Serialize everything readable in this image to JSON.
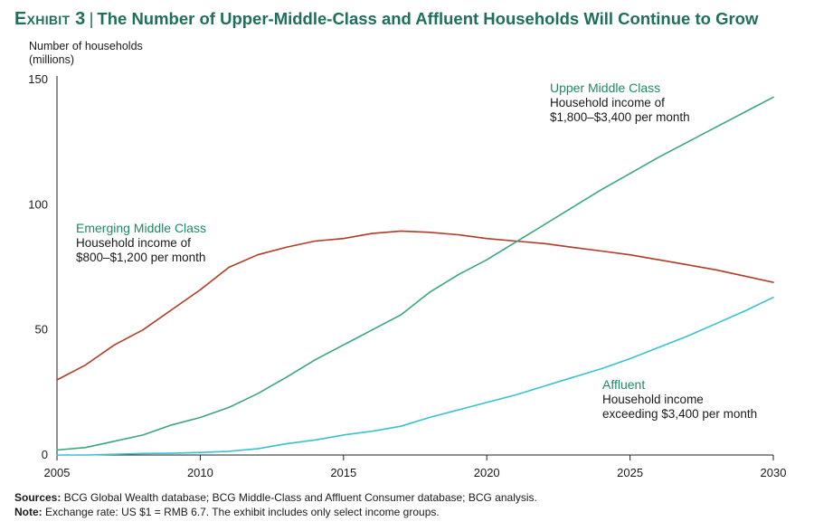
{
  "header": {
    "exhibit": "Exhibit 3",
    "separator": "|",
    "title": "The Number of Upper-Middle-Class and Affluent Households Will Continue to Grow"
  },
  "axis": {
    "ylabel_line1": "Number of households",
    "ylabel_line2": "(millions)"
  },
  "footer": {
    "sources_label": "Sources:",
    "sources_text": "BCG Global Wealth database; BCG Middle-Class and Affluent Consumer database; BCG analysis.",
    "note_label": "Note:",
    "note_text": "Exchange rate: US $1 = RMB 6.7. The exhibit includes only select income groups."
  },
  "colors": {
    "title": "#1e6f5c",
    "emerging": "#b23a26",
    "upper": "#3aa57f",
    "affluent": "#39c1cf",
    "label_green": "#1e8a66"
  },
  "chart_data": {
    "type": "line",
    "x": [
      2005,
      2006,
      2007,
      2008,
      2009,
      2010,
      2011,
      2012,
      2013,
      2014,
      2015,
      2016,
      2017,
      2018,
      2019,
      2020,
      2021,
      2022,
      2023,
      2024,
      2025,
      2026,
      2027,
      2028,
      2029,
      2030
    ],
    "xticks": [
      2005,
      2010,
      2015,
      2020,
      2025,
      2030
    ],
    "yticks": [
      0,
      50,
      100,
      150
    ],
    "xlim": [
      2005,
      2030
    ],
    "ylim": [
      0,
      150
    ],
    "grid": false,
    "series": [
      {
        "key": "emerging",
        "name": "Emerging Middle Class",
        "description": "Household income of",
        "description2": "$800–$1,200 per month",
        "values": [
          30,
          36,
          44,
          50,
          58,
          66,
          75,
          80,
          83,
          85.5,
          86.5,
          88.5,
          89.5,
          89,
          88,
          86.5,
          85.5,
          84.5,
          83,
          81.5,
          80,
          78,
          76,
          74,
          71.5,
          69
        ]
      },
      {
        "key": "upper",
        "name": "Upper Middle Class",
        "description": "Household income of",
        "description2": "$1,800–$3,400 per month",
        "values": [
          2,
          3,
          5.5,
          8,
          12,
          15,
          19,
          24.5,
          31,
          38,
          44,
          50,
          56,
          65,
          72,
          78,
          85,
          92,
          99,
          106,
          112.5,
          119,
          125,
          131,
          137,
          143
        ]
      },
      {
        "key": "affluent",
        "name": "Affluent",
        "description": "Household income",
        "description2": "exceeding $3,400 per month",
        "values": [
          0,
          0,
          0.3,
          0.6,
          0.7,
          1,
          1.5,
          2.5,
          4.5,
          6,
          8,
          9.5,
          11.5,
          15,
          18,
          21,
          24,
          27.5,
          31,
          34.5,
          38.5,
          43,
          47.5,
          52.5,
          57.5,
          63
        ]
      }
    ]
  }
}
